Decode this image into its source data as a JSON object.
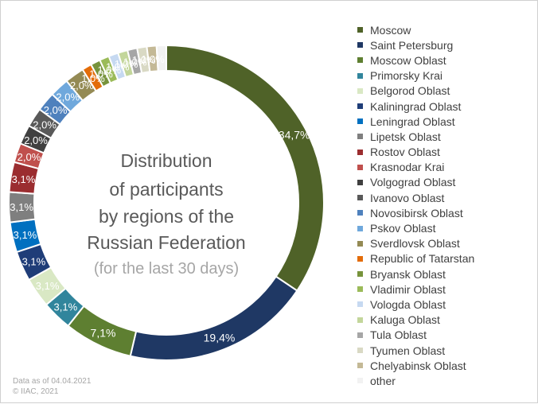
{
  "chart_data": {
    "type": "pie",
    "title": [
      "Distribution",
      "of participants",
      "by regions of the",
      "Russian Federation"
    ],
    "subtitle": "(for the last 30 days)",
    "legend_position": "right",
    "series": [
      {
        "name": "Moscow",
        "value": 34.7,
        "label": "34,7%",
        "color": "#4f6228"
      },
      {
        "name": "Saint Petersburg",
        "value": 19.4,
        "label": "19,4%",
        "color": "#1f3864"
      },
      {
        "name": "Moscow Oblast",
        "value": 7.1,
        "label": "7,1%",
        "color": "#5e7f31"
      },
      {
        "name": "Primorsky Krai",
        "value": 3.1,
        "label": "3,1%",
        "color": "#31859c"
      },
      {
        "name": "Belgorod Oblast",
        "value": 3.1,
        "label": "3,1%",
        "color": "#d9e8c4"
      },
      {
        "name": "Kaliningrad Oblast",
        "value": 3.1,
        "label": "3,1%",
        "color": "#1f3d78"
      },
      {
        "name": "Leningrad Oblast",
        "value": 3.1,
        "label": "3,1%",
        "color": "#0070c0"
      },
      {
        "name": "Lipetsk Oblast",
        "value": 3.1,
        "label": "3,1%",
        "color": "#7f7f7f"
      },
      {
        "name": "Rostov Oblast",
        "value": 3.1,
        "label": "3,1%",
        "color": "#9b2d30"
      },
      {
        "name": "Krasnodar Krai",
        "value": 2.0,
        "label": "2,0%",
        "color": "#c0504d"
      },
      {
        "name": "Volgograd Oblast",
        "value": 2.0,
        "label": "2,0%",
        "color": "#404040"
      },
      {
        "name": "Ivanovo Oblast",
        "value": 2.0,
        "label": "2,0%",
        "color": "#595959"
      },
      {
        "name": "Novosibirsk Oblast",
        "value": 2.0,
        "label": "2,0%",
        "color": "#4f81bd"
      },
      {
        "name": "Pskov Oblast",
        "value": 2.0,
        "label": "2,0%",
        "color": "#6fa8dc"
      },
      {
        "name": "Sverdlovsk Oblast",
        "value": 2.0,
        "label": "2,0%",
        "color": "#948a54"
      },
      {
        "name": "Republic of Tatarstan",
        "value": 1.0,
        "label": "1,0%",
        "color": "#e36c09"
      },
      {
        "name": "Bryansk Oblast",
        "value": 1.0,
        "label": "1,0%",
        "color": "#77933c"
      },
      {
        "name": "Vladimir Oblast",
        "value": 1.0,
        "label": "1,0%",
        "color": "#9bbb59"
      },
      {
        "name": "Vologda Oblast",
        "value": 1.0,
        "label": "1,0%",
        "color": "#c6d9f1"
      },
      {
        "name": "Kaluga Oblast",
        "value": 1.0,
        "label": "1,0%",
        "color": "#c3d69b"
      },
      {
        "name": "Tula Oblast",
        "value": 1.0,
        "label": "1,0%",
        "color": "#a6a6a6"
      },
      {
        "name": "Tyumen Oblast",
        "value": 1.0,
        "label": "1,0%",
        "color": "#d9d9c4"
      },
      {
        "name": "Chelyabinsk Oblast",
        "value": 1.0,
        "label": "1,0%",
        "color": "#c4b996"
      },
      {
        "name": "other",
        "value": 1.0,
        "label": "1,0%",
        "color": "#f2f2f2"
      }
    ]
  },
  "footnote": {
    "date_line": "Data as of 04.04.2021",
    "copyright_line": "© IIAC, 2021"
  }
}
